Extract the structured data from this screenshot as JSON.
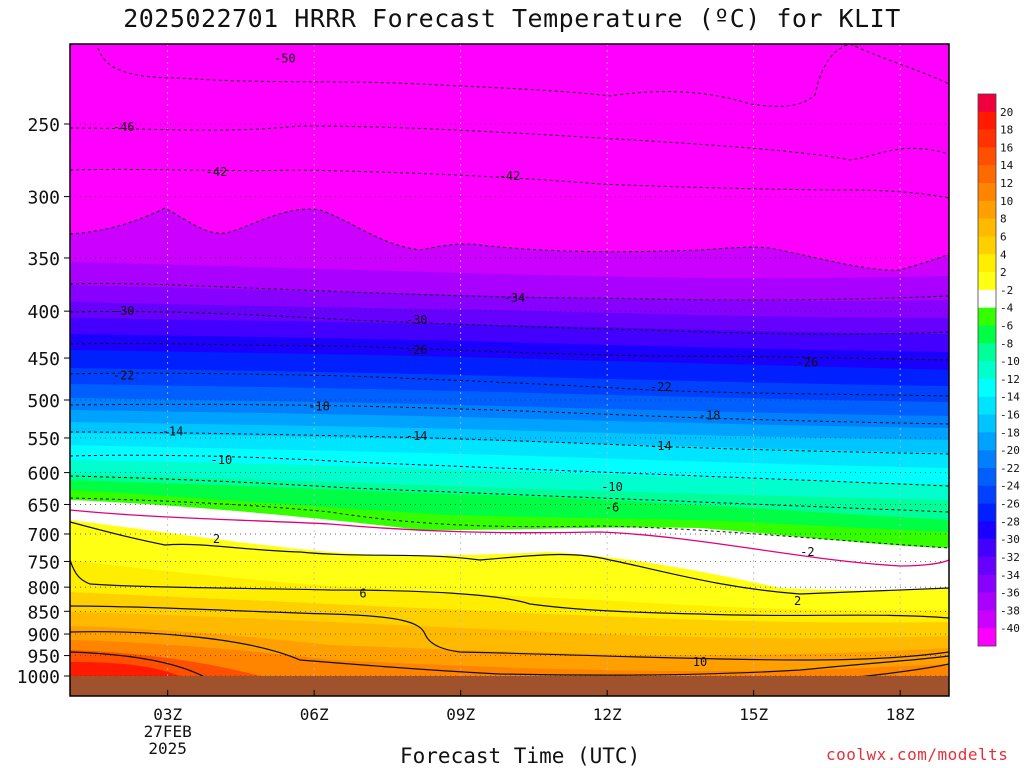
{
  "title": "2025022701 HRRR Forecast Temperature (ºC) for KLIT",
  "x_axis_label": "Forecast Time (UTC)",
  "credit": "coolwx.com/modelts",
  "chart_data": {
    "type": "heatmap",
    "title": "2025022701 HRRR Forecast Temperature (ºC) for KLIT",
    "xlabel": "Forecast Time (UTC)",
    "ylabel": "",
    "x_ticks": [
      {
        "hour": 3,
        "label": "03Z",
        "sublabels": [
          "27FEB",
          "2025"
        ]
      },
      {
        "hour": 6,
        "label": "06Z",
        "sublabels": []
      },
      {
        "hour": 9,
        "label": "09Z",
        "sublabels": []
      },
      {
        "hour": 12,
        "label": "12Z",
        "sublabels": []
      },
      {
        "hour": 15,
        "label": "15Z",
        "sublabels": []
      },
      {
        "hour": 18,
        "label": "18Z",
        "sublabels": []
      }
    ],
    "xlim": [
      1,
      19
    ],
    "y_ticks": [
      250,
      300,
      350,
      400,
      450,
      500,
      550,
      600,
      650,
      700,
      750,
      800,
      850,
      900,
      950,
      1000
    ],
    "ylim_hpa": [
      1025,
      210
    ],
    "y_scale": "log-pressure",
    "colorbar": {
      "labels": [
        20,
        18,
        16,
        14,
        12,
        10,
        8,
        6,
        4,
        2,
        -2,
        -4,
        -6,
        -8,
        -10,
        -12,
        -14,
        -16,
        -18,
        -20,
        -22,
        -24,
        -26,
        -28,
        -30,
        -32,
        -34,
        -36,
        -38,
        -40
      ],
      "colors": [
        "#f0003c",
        "#ff1a00",
        "#ff3300",
        "#ff5000",
        "#ff6a00",
        "#ff8400",
        "#ffa000",
        "#ffba00",
        "#ffd000",
        "#ffee00",
        "#ffff14",
        "#ffffff",
        "#33ff00",
        "#00ff44",
        "#00ff99",
        "#00ffcc",
        "#00ffff",
        "#00e5ff",
        "#00c4ff",
        "#00a2ff",
        "#0080ff",
        "#0060ff",
        "#0040ff",
        "#0020ff",
        "#1a00ff",
        "#4400ff",
        "#6600ff",
        "#8800ff",
        "#aa00ff",
        "#cc00ff",
        "#ff00ff"
      ]
    },
    "isotherm_labels": [
      {
        "value": -50,
        "hour": 5.4,
        "hpa": 212
      },
      {
        "value": -46,
        "hour": 2.1,
        "hpa": 252
      },
      {
        "value": -42,
        "hour": 4.0,
        "hpa": 282
      },
      {
        "value": -42,
        "hour": 10.0,
        "hpa": 285
      },
      {
        "value": -34,
        "hour": 10.1,
        "hpa": 387
      },
      {
        "value": -30,
        "hour": 2.1,
        "hpa": 400
      },
      {
        "value": -30,
        "hour": 8.1,
        "hpa": 409
      },
      {
        "value": -26,
        "hour": 8.1,
        "hpa": 441
      },
      {
        "value": -26,
        "hour": 16.1,
        "hpa": 455
      },
      {
        "value": -22,
        "hour": 2.1,
        "hpa": 470
      },
      {
        "value": -22,
        "hour": 13.1,
        "hpa": 484
      },
      {
        "value": -18,
        "hour": 6.1,
        "hpa": 508
      },
      {
        "value": -18,
        "hour": 14.1,
        "hpa": 520
      },
      {
        "value": -14,
        "hour": 3.1,
        "hpa": 541
      },
      {
        "value": -14,
        "hour": 8.1,
        "hpa": 547
      },
      {
        "value": -14,
        "hour": 13.1,
        "hpa": 561
      },
      {
        "value": -10,
        "hour": 4.1,
        "hpa": 581
      },
      {
        "value": -10,
        "hour": 12.1,
        "hpa": 622
      },
      {
        "value": -6,
        "hour": 12.1,
        "hpa": 655
      },
      {
        "value": -2,
        "hour": 16.1,
        "hpa": 732
      },
      {
        "value": 2,
        "hour": 4.0,
        "hpa": 709
      },
      {
        "value": 2,
        "hour": 15.9,
        "hpa": 828
      },
      {
        "value": 6,
        "hour": 7.0,
        "hpa": 813
      },
      {
        "value": 10,
        "hour": 13.9,
        "hpa": 966
      }
    ]
  }
}
